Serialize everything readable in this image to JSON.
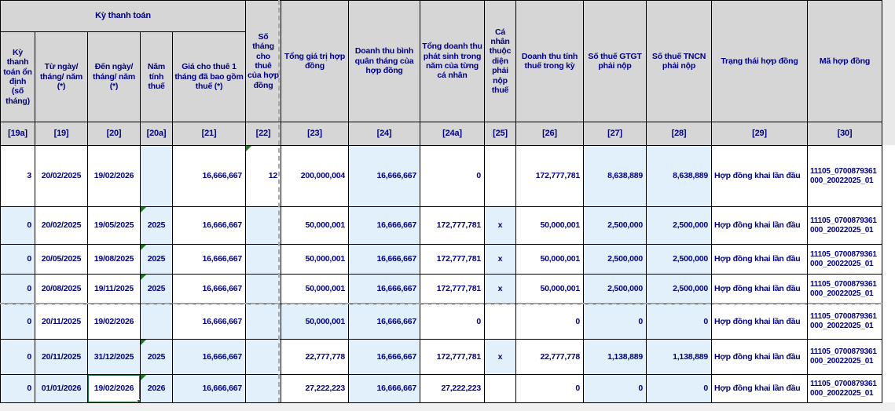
{
  "app": {
    "type": "spreadsheet-grid",
    "language": "vi"
  },
  "colors": {
    "header_bg": "#d6d6d6",
    "computed_cell_blue": "#e1f0fa",
    "text_navy": "#000080",
    "grid_border": "#000000",
    "selection_green": "#217346",
    "error_triangle_green": "#1e7a1e",
    "page_break_dash_gray": "#a6a6a6",
    "outside_gray": "#f0f0f0"
  },
  "table": {
    "group_header": "Kỳ thanh toán",
    "columns": [
      {
        "code": "[19a]",
        "label": "Kỳ thanh toán ổn định (số tháng)",
        "align": "right",
        "in_group": true
      },
      {
        "code": "[19]",
        "label": "Từ ngày/ tháng/ năm (*)",
        "align": "center",
        "in_group": true
      },
      {
        "code": "[20]",
        "label": "Đến ngày/ tháng/ năm (*)",
        "align": "center",
        "in_group": true
      },
      {
        "code": "[20a]",
        "label": "Năm tính thuế",
        "align": "center",
        "in_group": true
      },
      {
        "code": "[21]",
        "label": "Giá cho thuê 1 tháng đã bao gồm thuế (*)",
        "align": "right",
        "in_group": true
      },
      {
        "code": "[22]",
        "label": "Số tháng cho thuê của hợp đồng",
        "align": "right"
      },
      {
        "code": "[23]",
        "label": "Tổng giá trị hợp đồng",
        "align": "right"
      },
      {
        "code": "[24]",
        "label": "Doanh thu bình quân tháng của hợp đồng",
        "align": "right"
      },
      {
        "code": "[24a]",
        "label": "Tổng doanh thu phát sinh trong năm của từng cá nhân",
        "align": "right"
      },
      {
        "code": "[25]",
        "label": "Cá nhân thuộc diện phải nộp thuế",
        "align": "center"
      },
      {
        "code": "[26]",
        "label": "Doanh thu tính thuế trong kỳ",
        "align": "right"
      },
      {
        "code": "[27]",
        "label": "Số thuế GTGT phải nộp",
        "align": "right"
      },
      {
        "code": "[28]",
        "label": "Số thuế TNCN phải nộp",
        "align": "right"
      },
      {
        "code": "[29]",
        "label": "Trạng thái hợp đồng",
        "align": "left"
      },
      {
        "code": "[30]",
        "label": "Mã hợp đồng",
        "align": "left"
      }
    ],
    "rows": [
      {
        "cells": [
          "3",
          "20/02/2025",
          "19/02/2026",
          "",
          "16,666,667",
          "12",
          "200,000,004",
          "16,666,667",
          "0",
          "",
          "172,777,781",
          "8,638,889",
          "8,638,889",
          "Hợp đồng khai lần đầu",
          "11105_0700879361000_20022025_01"
        ],
        "blue_cells": [
          3,
          7,
          11,
          12
        ],
        "error_triangles": [
          5
        ],
        "selected_cell": null
      },
      {
        "cells": [
          "0",
          "20/02/2025",
          "19/05/2025",
          "2025",
          "16,666,667",
          "",
          "50,000,001",
          "16,666,667",
          "172,777,781",
          "x",
          "50,000,001",
          "2,500,000",
          "2,500,000",
          "Hợp đồng khai lần đầu",
          "11105_0700879361000_20022025_01"
        ],
        "blue_cells": [
          0,
          3,
          5,
          7,
          9,
          11,
          12
        ],
        "error_triangles": [
          3
        ],
        "selected_cell": null
      },
      {
        "cells": [
          "0",
          "20/05/2025",
          "19/08/2025",
          "2025",
          "16,666,667",
          "",
          "50,000,001",
          "16,666,667",
          "172,777,781",
          "x",
          "50,000,001",
          "2,500,000",
          "2,500,000",
          "Hợp đồng khai lần đầu",
          "11105_0700879361000_20022025_01"
        ],
        "blue_cells": [
          0,
          3,
          5,
          7,
          9,
          11,
          12
        ],
        "error_triangles": [
          3
        ],
        "selected_cell": null
      },
      {
        "cells": [
          "0",
          "20/08/2025",
          "19/11/2025",
          "2025",
          "16,666,667",
          "",
          "50,000,001",
          "16,666,667",
          "172,777,781",
          "x",
          "50,000,001",
          "2,500,000",
          "2,500,000",
          "Hợp đồng khai lần đầu",
          "11105_0700879361000_20022025_01"
        ],
        "blue_cells": [
          0,
          3,
          5,
          7,
          9,
          11,
          12
        ],
        "error_triangles": [
          3
        ],
        "selected_cell": null
      },
      {
        "cells": [
          "0",
          "20/11/2025",
          "19/02/2026",
          "",
          "16,666,667",
          "",
          "50,000,001",
          "16,666,667",
          "0",
          "",
          "0",
          "0",
          "0",
          "Hợp đồng khai lần đầu",
          "11105_0700879361000_20022025_01"
        ],
        "blue_cells": [
          0,
          3,
          5,
          6,
          7,
          11,
          12
        ],
        "error_triangles": [],
        "selected_cell": null
      },
      {
        "cells": [
          "0",
          "20/11/2025",
          "31/12/2025",
          "2025",
          "16,666,667",
          "",
          "22,777,778",
          "16,666,667",
          "172,777,781",
          "x",
          "22,777,778",
          "1,138,889",
          "1,138,889",
          "Hợp đồng khai lần đầu",
          "11105_0700879361000_20022025_01"
        ],
        "blue_cells": [
          0,
          1,
          2,
          3,
          4,
          5,
          7,
          9,
          11,
          12
        ],
        "error_triangles": [
          3
        ],
        "selected_cell": null
      },
      {
        "cells": [
          "0",
          "01/01/2026",
          "19/02/2026",
          "2026",
          "16,666,667",
          "",
          "27,222,223",
          "16,666,667",
          "27,222,223",
          "",
          "0",
          "0",
          "0",
          "Hợp đồng khai lần đầu",
          "11105_0700879361000_20022025_01"
        ],
        "blue_cells": [
          0,
          1,
          3,
          4,
          5,
          7,
          11,
          12
        ],
        "error_triangles": [
          3
        ],
        "selected_cell": 2
      }
    ]
  }
}
